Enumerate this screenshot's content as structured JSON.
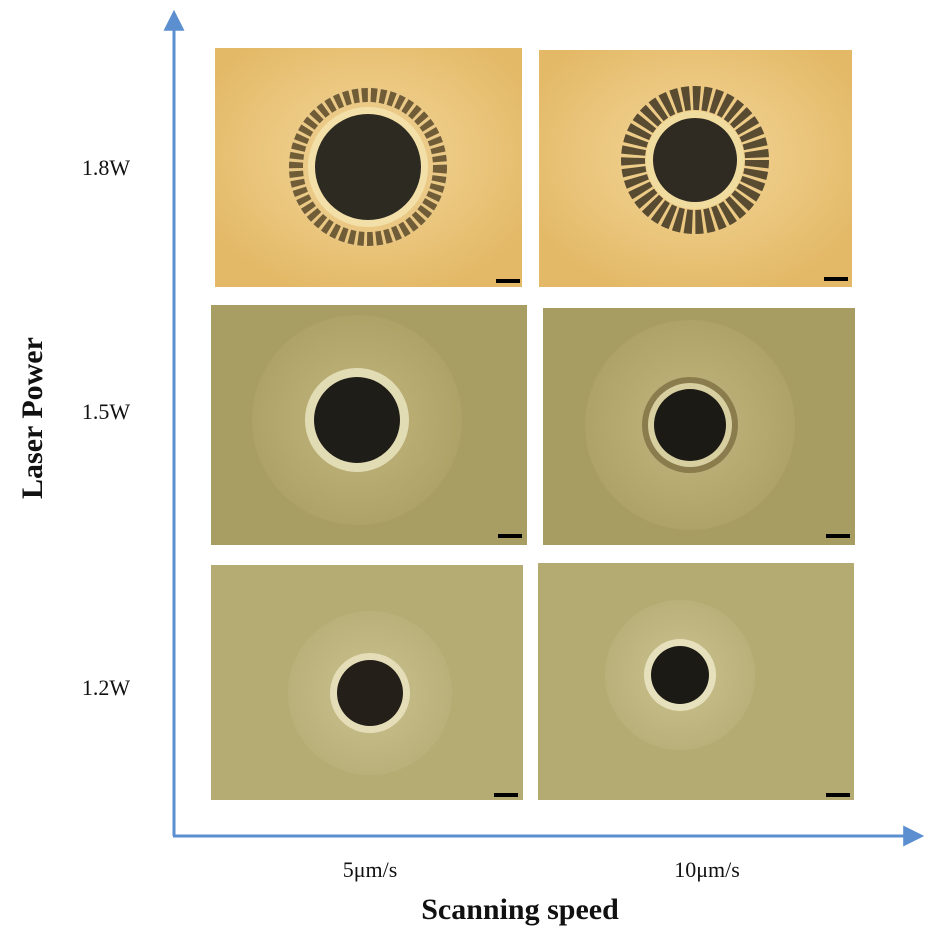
{
  "axes": {
    "y_label": "Laser Power",
    "x_label": "Scanning speed"
  },
  "rows": [
    "1.8W",
    "1.5W",
    "1.2W"
  ],
  "columns": [
    "5μm/s",
    "10μm/s"
  ]
}
